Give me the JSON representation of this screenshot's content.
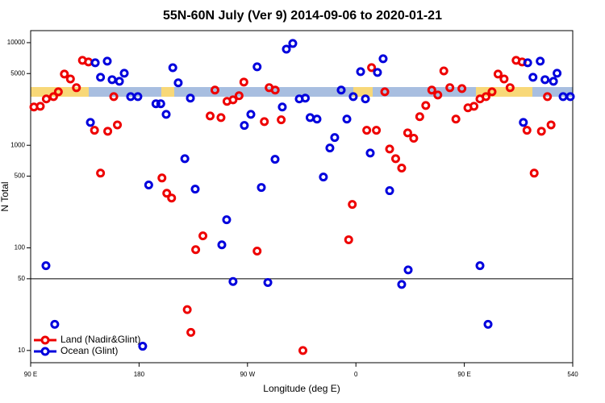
{
  "chart_data": {
    "type": "scatter",
    "title": "55N-60N July (Ver 9)   2014-09-06 to 2020-01-21",
    "x_label": "Longitude (deg E)",
    "y_label": "N Total",
    "log_y": true,
    "legend": "lower left",
    "xlim": [
      90,
      540
    ],
    "xticks": [
      {
        "value": 90,
        "label": "90 E"
      },
      180,
      {
        "value": 270,
        "label": "90 W"
      },
      {
        "value": 360,
        "label": "0"
      },
      {
        "value": 450,
        "label": "90 E"
      },
      540
    ],
    "ylim": [
      7.6,
      13100
    ],
    "yticks": [
      10,
      50,
      100,
      500,
      1000,
      5000,
      10000
    ],
    "reference_line": 50,
    "series": [
      {
        "name": "Land (Nadir&Glint)",
        "color": "#ee0000",
        "x": [
          92.7,
          98,
          103,
          109,
          113,
          118,
          123,
          128,
          133,
          138,
          143,
          148,
          154,
          159,
          162,
          199,
          203,
          207,
          220,
          223,
          227,
          233,
          239,
          243,
          248,
          253,
          258,
          263,
          267,
          278,
          284,
          288,
          293,
          298,
          316,
          354,
          357,
          369,
          373,
          377,
          384,
          388,
          393,
          398,
          403,
          408,
          413,
          418,
          423,
          428,
          433,
          438,
          443,
          448,
          453,
          458,
          463,
          468,
          473,
          478,
          483,
          488,
          493,
          498,
          502,
          508,
          514,
          519,
          522
        ],
        "values": [
          2360,
          2400,
          2830,
          2980,
          3320,
          4940,
          4430,
          3640,
          6720,
          6490,
          1400,
          535,
          1370,
          2980,
          1580,
          480,
          341,
          306,
          25,
          15,
          96,
          131,
          1930,
          3450,
          1860,
          2680,
          2770,
          3040,
          4130,
          93,
          1700,
          3640,
          3450,
          1770,
          10,
          120,
          265,
          1400,
          5710,
          1400,
          3320,
          920,
          740,
          600,
          1320,
          1170,
          1900,
          2440,
          3450,
          3090,
          5300,
          3640,
          1800,
          3570,
          2320,
          2400,
          2830,
          2980,
          3320,
          4940,
          4430,
          3640,
          6720,
          6490,
          1400,
          535,
          1370,
          2980,
          1580
        ]
      },
      {
        "name": "Ocean (Glint)",
        "color": "#0000dd",
        "x": [
          102.7,
          110,
          139.6,
          143.6,
          148,
          153.6,
          157.6,
          163.7,
          167.7,
          173,
          179,
          183,
          188,
          194,
          198,
          202.5,
          208,
          212.5,
          218,
          222.6,
          226.6,
          248.7,
          252.7,
          258,
          267.4,
          272.8,
          278,
          281.5,
          286.9,
          292.9,
          298.9,
          302.3,
          307.6,
          313,
          318,
          322,
          327.7,
          333,
          338.4,
          342.4,
          347.8,
          352.5,
          357.8,
          363.9,
          367.9,
          371.9,
          377.9,
          382.6,
          388,
          398,
          403.4,
          463,
          469.7,
          499,
          502.6,
          507,
          513,
          517,
          524,
          527,
          532,
          538
        ],
        "values": [
          67,
          18,
          1670,
          6370,
          4600,
          6600,
          4360,
          4200,
          5030,
          2980,
          2980,
          11,
          410,
          2540,
          2540,
          2000,
          5700,
          4060,
          740,
          2880,
          374,
          107,
          188,
          47,
          1560,
          2000,
          5820,
          388,
          46,
          730,
          2360,
          8650,
          9820,
          2830,
          2880,
          1860,
          1800,
          490,
          940,
          1190,
          3450,
          1800,
          2980,
          5220,
          2830,
          840,
          5130,
          6970,
          361,
          44,
          61,
          67,
          18,
          1670,
          6370,
          4600,
          6600,
          4360,
          4200,
          5030,
          2980,
          2980
        ]
      }
    ]
  }
}
